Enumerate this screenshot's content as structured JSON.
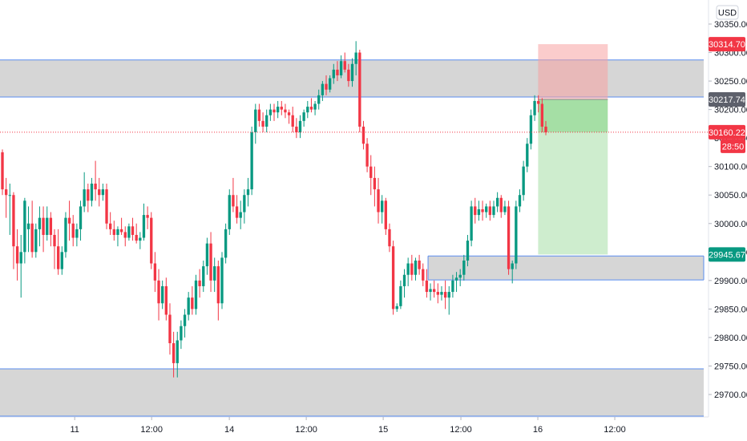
{
  "currency": "USD",
  "chart_data": {
    "type": "candlestick",
    "symbol_currency": "USD",
    "ylim": [
      29650,
      30380
    ],
    "x_range": [
      0,
      1000
    ],
    "y_ticks": [
      "30350.00",
      "30300.00",
      "30250.00",
      "30200.00",
      "30150.00",
      "30100.00",
      "30050.00",
      "30000.00",
      "29950.00",
      "29900.00",
      "29850.00",
      "29800.00",
      "29750.00",
      "29700.00"
    ],
    "y_tick_values": [
      30350,
      30300,
      30250,
      30200,
      30150,
      30100,
      30050,
      30000,
      29950,
      29900,
      29850,
      29800,
      29750,
      29700
    ],
    "x_ticks": [
      {
        "label": "11",
        "pos": 100
      },
      {
        "label": "12:00",
        "pos": 203
      },
      {
        "label": "14",
        "pos": 307
      },
      {
        "label": "12:00",
        "pos": 410
      },
      {
        "label": "15",
        "pos": 513
      },
      {
        "label": "12:00",
        "pos": 617
      },
      {
        "label": "16",
        "pos": 720
      },
      {
        "label": "12:00",
        "pos": 823
      }
    ],
    "zones": [
      {
        "name": "supply-zone",
        "x0": 0,
        "x1": 1000,
        "y0": 30222,
        "y1": 30287,
        "fill": "#d1d1d1",
        "border": "#5b8def"
      },
      {
        "name": "demand-zone-small",
        "x0": 573,
        "x1": 946,
        "y0": 29901,
        "y1": 29943,
        "fill": "#d1d1d1",
        "border": "#5b8def"
      },
      {
        "name": "demand-zone-bottom",
        "x0": 0,
        "x1": 1000,
        "y0": 29662,
        "y1": 29745,
        "fill": "#d1d1d1",
        "border": "#5b8def"
      }
    ],
    "position": {
      "x0": 700,
      "x1": 790,
      "entry": 30217.74,
      "stop": 30314.7,
      "target": 29945.67,
      "current": 30160.22,
      "loss_color": "#f7a3a3",
      "profit_color": "#a5dfa5"
    },
    "current_price_line": 30160.22,
    "price_tags": [
      {
        "name": "stop-price-tag",
        "text": "30314.70",
        "value": 30314.7,
        "color": "#f23645"
      },
      {
        "name": "entry-price-tag",
        "text": "30217.74",
        "value": 30217.74,
        "color": "#5d606b"
      },
      {
        "name": "current-price-tag",
        "text": "30160.22",
        "value": 30160.22,
        "color": "#f23645"
      },
      {
        "name": "target-price-tag",
        "text": "29945.67",
        "value": 29945.67,
        "color": "#089981"
      }
    ],
    "countdown": "28:50",
    "up_color": "#089981",
    "down_color": "#f23645",
    "candles": [
      [
        30125,
        30130,
        30050,
        30060
      ],
      [
        30060,
        30080,
        30010,
        30050
      ],
      [
        30050,
        30070,
        29980,
        30050
      ],
      [
        30050,
        30055,
        29920,
        29960
      ],
      [
        29960,
        29990,
        29900,
        29930
      ],
      [
        29930,
        29980,
        29870,
        29950
      ],
      [
        29950,
        30045,
        29930,
        30040
      ],
      [
        29990,
        30030,
        29950,
        30000
      ],
      [
        30000,
        30040,
        29940,
        29950
      ],
      [
        29950,
        30000,
        29940,
        29990
      ],
      [
        29990,
        30030,
        29960,
        30010
      ],
      [
        30010,
        30030,
        29950,
        29980
      ],
      [
        29980,
        30030,
        29970,
        30010
      ],
      [
        30010,
        30020,
        29960,
        29980
      ],
      [
        29980,
        29990,
        29920,
        29960
      ],
      [
        29960,
        29990,
        29910,
        29920
      ],
      [
        29920,
        29960,
        29910,
        29950
      ],
      [
        29950,
        30020,
        29940,
        30010
      ],
      [
        30010,
        30040,
        29970,
        30000
      ],
      [
        30000,
        30015,
        29960,
        29975
      ],
      [
        29975,
        30000,
        29960,
        29990
      ],
      [
        29990,
        30040,
        29970,
        30030
      ],
      [
        30030,
        30090,
        30020,
        30060
      ],
      [
        30060,
        30070,
        30020,
        30040
      ],
      [
        30040,
        30080,
        30030,
        30070
      ],
      [
        30070,
        30110,
        30040,
        30060
      ],
      [
        30060,
        30080,
        30030,
        30050
      ],
      [
        30050,
        30070,
        30040,
        30060
      ],
      [
        30060,
        30070,
        29990,
        30000
      ],
      [
        30000,
        30020,
        29980,
        29990
      ],
      [
        29990,
        30005,
        29970,
        29980
      ],
      [
        29980,
        29995,
        29960,
        29990
      ],
      [
        29990,
        30010,
        29980,
        29985
      ],
      [
        29985,
        29995,
        29960,
        29975
      ],
      [
        29975,
        30000,
        29970,
        29995
      ],
      [
        29995,
        30010,
        29970,
        29980
      ],
      [
        29980,
        30000,
        29965,
        29970
      ],
      [
        29970,
        29985,
        29955,
        29975
      ],
      [
        29975,
        30035,
        29970,
        30015
      ],
      [
        30015,
        30030,
        29990,
        30010
      ],
      [
        30010,
        30020,
        29920,
        29930
      ],
      [
        29930,
        29950,
        29880,
        29900
      ],
      [
        29900,
        29920,
        29830,
        29860
      ],
      [
        29860,
        29900,
        29850,
        29890
      ],
      [
        29890,
        29905,
        29830,
        29840
      ],
      [
        29840,
        29860,
        29770,
        29790
      ],
      [
        29790,
        29810,
        29730,
        29755
      ],
      [
        29755,
        29810,
        29730,
        29795
      ],
      [
        29795,
        29830,
        29780,
        29820
      ],
      [
        29820,
        29850,
        29800,
        29840
      ],
      [
        29840,
        29880,
        29830,
        29870
      ],
      [
        29870,
        29890,
        29840,
        29850
      ],
      [
        29850,
        29910,
        29840,
        29900
      ],
      [
        29900,
        29920,
        29870,
        29890
      ],
      [
        29890,
        29935,
        29880,
        29925
      ],
      [
        29925,
        29975,
        29910,
        29965
      ],
      [
        29965,
        29985,
        29880,
        29900
      ],
      [
        29900,
        29940,
        29880,
        29925
      ],
      [
        29925,
        29935,
        29830,
        29860
      ],
      [
        29860,
        29950,
        29850,
        29940
      ],
      [
        29940,
        30000,
        29930,
        29990
      ],
      [
        29990,
        30060,
        29980,
        30050
      ],
      [
        30050,
        30080,
        30020,
        30030
      ],
      [
        30030,
        30050,
        30000,
        30010
      ],
      [
        30010,
        30040,
        29990,
        30020
      ],
      [
        30020,
        30060,
        30000,
        30050
      ],
      [
        30050,
        30080,
        30030,
        30060
      ],
      [
        30060,
        30170,
        30050,
        30160
      ],
      [
        30160,
        30210,
        30140,
        30200
      ],
      [
        30200,
        30210,
        30170,
        30180
      ],
      [
        30180,
        30195,
        30160,
        30170
      ],
      [
        30170,
        30200,
        30160,
        30190
      ],
      [
        30190,
        30210,
        30180,
        30200
      ],
      [
        30200,
        30210,
        30180,
        30195
      ],
      [
        30195,
        30215,
        30185,
        30205
      ],
      [
        30205,
        30215,
        30190,
        30200
      ],
      [
        30200,
        30210,
        30185,
        30195
      ],
      [
        30195,
        30200,
        30175,
        30190
      ],
      [
        30190,
        30205,
        30160,
        30170
      ],
      [
        30170,
        30185,
        30150,
        30160
      ],
      [
        30160,
        30190,
        30150,
        30180
      ],
      [
        30180,
        30200,
        30170,
        30195
      ],
      [
        30195,
        30215,
        30185,
        30205
      ],
      [
        30205,
        30220,
        30195,
        30200
      ],
      [
        30200,
        30215,
        30190,
        30210
      ],
      [
        30210,
        30235,
        30200,
        30225
      ],
      [
        30225,
        30250,
        30215,
        30245
      ],
      [
        30245,
        30260,
        30225,
        30235
      ],
      [
        30235,
        30260,
        30230,
        30255
      ],
      [
        30255,
        30280,
        30245,
        30270
      ],
      [
        30270,
        30285,
        30250,
        30260
      ],
      [
        30260,
        30295,
        30255,
        30285
      ],
      [
        30285,
        30300,
        30265,
        30270
      ],
      [
        30270,
        30280,
        30240,
        30250
      ],
      [
        30250,
        30290,
        30240,
        30280
      ],
      [
        30280,
        30320,
        30260,
        30300
      ],
      [
        30300,
        30305,
        30160,
        30170
      ],
      [
        30170,
        30180,
        30130,
        30140
      ],
      [
        30140,
        30150,
        30090,
        30100
      ],
      [
        30100,
        30120,
        30050,
        30080
      ],
      [
        30080,
        30100,
        30030,
        30060
      ],
      [
        30060,
        30080,
        30000,
        30020
      ],
      [
        30020,
        30050,
        30000,
        30040
      ],
      [
        30040,
        30045,
        29980,
        29990
      ],
      [
        29990,
        30000,
        29950,
        29960
      ],
      [
        29960,
        29970,
        29840,
        29850
      ],
      [
        29850,
        29860,
        29845,
        29855
      ],
      [
        29855,
        29900,
        29850,
        29890
      ],
      [
        29890,
        29920,
        29870,
        29910
      ],
      [
        29910,
        29940,
        29890,
        29930
      ],
      [
        29930,
        29945,
        29900,
        29910
      ],
      [
        29910,
        29940,
        29900,
        29935
      ],
      [
        29935,
        29945,
        29910,
        29920
      ],
      [
        29920,
        29930,
        29890,
        29900
      ],
      [
        29900,
        29920,
        29870,
        29880
      ],
      [
        29880,
        29895,
        29865,
        29885
      ],
      [
        29885,
        29900,
        29870,
        29880
      ],
      [
        29880,
        29895,
        29860,
        29875
      ],
      [
        29875,
        29890,
        29865,
        29880
      ],
      [
        29880,
        29900,
        29850,
        29870
      ],
      [
        29870,
        29890,
        29840,
        29880
      ],
      [
        29880,
        29910,
        29870,
        29900
      ],
      [
        29900,
        29915,
        29880,
        29905
      ],
      [
        29905,
        29920,
        29890,
        29910
      ],
      [
        29910,
        29945,
        29900,
        29935
      ],
      [
        29935,
        29980,
        29925,
        29970
      ],
      [
        29970,
        30040,
        29960,
        30030
      ],
      [
        30030,
        30045,
        30000,
        30015
      ],
      [
        30015,
        30040,
        30005,
        30025
      ],
      [
        30025,
        30040,
        30005,
        30020
      ],
      [
        30020,
        30035,
        30010,
        30030
      ],
      [
        30030,
        30040,
        30005,
        30015
      ],
      [
        30015,
        30040,
        30010,
        30030
      ],
      [
        30030,
        30055,
        30020,
        30045
      ],
      [
        30045,
        30050,
        30010,
        30020
      ],
      [
        30020,
        30040,
        30015,
        30030
      ],
      [
        30030,
        30040,
        29910,
        29920
      ],
      [
        29920,
        29935,
        29895,
        29930
      ],
      [
        29930,
        30040,
        29920,
        30030
      ],
      [
        30030,
        30060,
        30020,
        30050
      ],
      [
        30050,
        30110,
        30040,
        30100
      ],
      [
        30100,
        30150,
        30090,
        30140
      ],
      [
        30140,
        30200,
        30130,
        30190
      ],
      [
        30190,
        30225,
        30180,
        30215
      ],
      [
        30215,
        30225,
        30195,
        30210
      ],
      [
        30210,
        30220,
        30160,
        30170
      ],
      [
        30170,
        30180,
        30155,
        30160
      ]
    ]
  }
}
